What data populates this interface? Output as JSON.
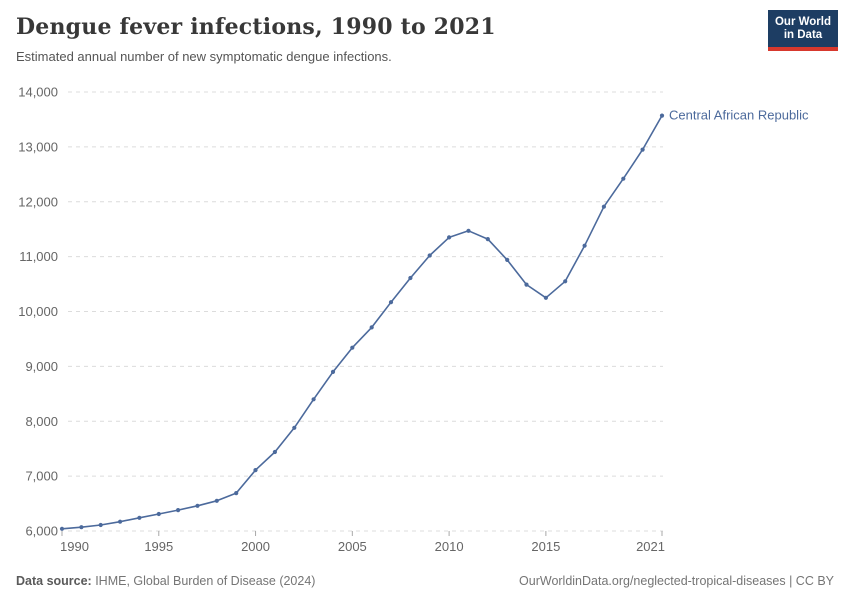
{
  "header": {
    "title": "Dengue fever infections, 1990 to 2021",
    "subtitle": "Estimated annual number of new symptomatic dengue infections."
  },
  "logo": {
    "line1": "Our World",
    "line2": "in Data",
    "bg_color": "#1d3d63",
    "stripe_color": "#d7382d"
  },
  "footer": {
    "source_label": "Data source:",
    "source_text": " IHME, Global Burden of Disease (2024)",
    "link_text": "OurWorldinData.org/neglected-tropical-diseases | CC BY"
  },
  "chart_data": {
    "type": "line",
    "title": "Dengue fever infections, 1990 to 2021",
    "xlabel": "",
    "ylabel": "",
    "xlim": [
      1990,
      2021
    ],
    "ylim": [
      6000,
      14000
    ],
    "grid": true,
    "legend_position": "end-of-line-label",
    "series": [
      {
        "name": "Central African Republic",
        "color": "#4c6a9c",
        "x": [
          1990,
          1991,
          1992,
          1993,
          1994,
          1995,
          1996,
          1997,
          1998,
          1999,
          2000,
          2001,
          2002,
          2003,
          2004,
          2005,
          2006,
          2007,
          2008,
          2009,
          2010,
          2011,
          2012,
          2013,
          2014,
          2015,
          2016,
          2017,
          2018,
          2019,
          2020,
          2021
        ],
        "values": [
          6040,
          6070,
          6110,
          6170,
          6240,
          6310,
          6380,
          6460,
          6550,
          6690,
          7110,
          7440,
          7880,
          8400,
          8900,
          9340,
          9710,
          10170,
          10610,
          11020,
          11350,
          11470,
          11320,
          10940,
          10490,
          10250,
          10550,
          11200,
          11910,
          12420,
          12950,
          13570
        ]
      }
    ],
    "yticks": [
      {
        "value": 6000,
        "label": "6,000"
      },
      {
        "value": 7000,
        "label": "7,000"
      },
      {
        "value": 8000,
        "label": "8,000"
      },
      {
        "value": 9000,
        "label": "9,000"
      },
      {
        "value": 10000,
        "label": "10,000"
      },
      {
        "value": 11000,
        "label": "11,000"
      },
      {
        "value": 12000,
        "label": "12,000"
      },
      {
        "value": 13000,
        "label": "13,000"
      },
      {
        "value": 14000,
        "label": "14,000"
      }
    ],
    "xticks": [
      {
        "value": 1990,
        "label": "1990"
      },
      {
        "value": 1995,
        "label": "1995"
      },
      {
        "value": 2000,
        "label": "2000"
      },
      {
        "value": 2005,
        "label": "2005"
      },
      {
        "value": 2010,
        "label": "2010"
      },
      {
        "value": 2015,
        "label": "2015"
      },
      {
        "value": 2021,
        "label": "2021"
      }
    ],
    "colors": {
      "grid": "#dcdcdc",
      "tick_text": "#666666",
      "tick_mark": "#a8a8a8",
      "line": "#4c6a9c"
    }
  }
}
